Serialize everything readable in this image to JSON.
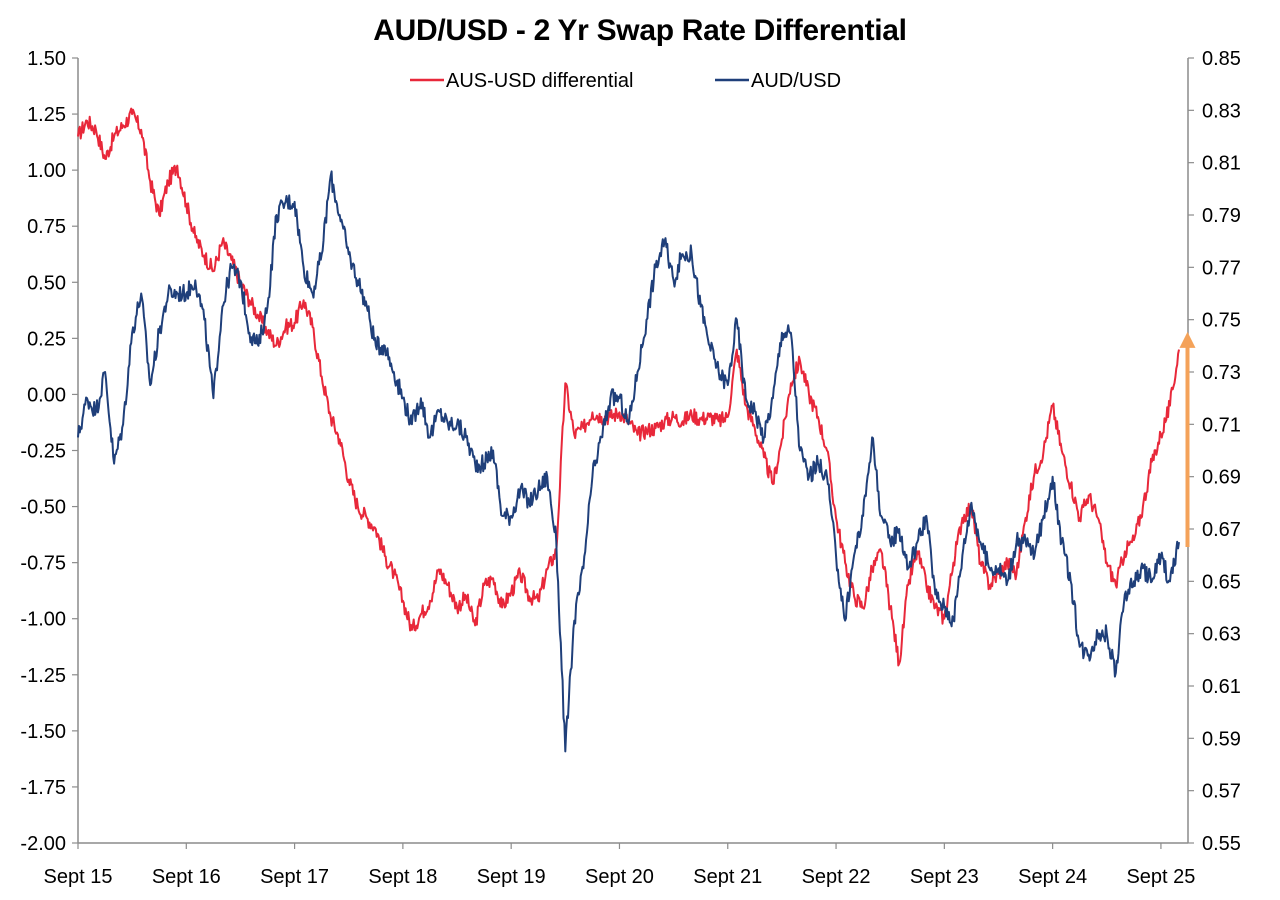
{
  "chart_data": {
    "type": "line",
    "title": "AUD/USD - 2 Yr Swap Rate Differential",
    "legend_position": "top-center",
    "grid": false,
    "x_tick_labels": [
      "Sept 15",
      "Sept 16",
      "Sept 17",
      "Sept 18",
      "Sept 19",
      "Sept 20",
      "Sept 21",
      "Sept 22",
      "Sept 23",
      "Sept 24",
      "Sept 25"
    ],
    "x_tick_dates": [
      "2015-09",
      "2016-09",
      "2017-09",
      "2018-09",
      "2019-09",
      "2020-09",
      "2021-09",
      "2022-09",
      "2023-09",
      "2024-09",
      "2025-09"
    ],
    "xlim": [
      "2015-09",
      "2025-12"
    ],
    "y_left": {
      "ylim": [
        -2.0,
        1.5
      ],
      "ticks": [
        "1.50",
        "1.25",
        "1.00",
        "0.75",
        "0.50",
        "0.25",
        "0.00",
        "-0.25",
        "-0.50",
        "-0.75",
        "-1.00",
        "-1.25",
        "-1.50",
        "-1.75",
        "-2.00"
      ]
    },
    "y_right": {
      "ylim": [
        0.55,
        0.85
      ],
      "ticks": [
        "0.85",
        "0.83",
        "0.81",
        "0.79",
        "0.77",
        "0.75",
        "0.73",
        "0.71",
        "0.69",
        "0.67",
        "0.65",
        "0.63",
        "0.61",
        "0.59",
        "0.57",
        "0.55"
      ]
    },
    "series": [
      {
        "name": "AUS-USD differential",
        "axis": "left",
        "color": "#e8283a",
        "points": [
          [
            "2015-09",
            1.15
          ],
          [
            "2015-10",
            1.22
          ],
          [
            "2015-11",
            1.18
          ],
          [
            "2015-12",
            1.05
          ],
          [
            "2016-01",
            1.15
          ],
          [
            "2016-02",
            1.2
          ],
          [
            "2016-03",
            1.25
          ],
          [
            "2016-04",
            1.18
          ],
          [
            "2016-05",
            0.95
          ],
          [
            "2016-06",
            0.8
          ],
          [
            "2016-07",
            0.95
          ],
          [
            "2016-08",
            1.02
          ],
          [
            "2016-09",
            0.85
          ],
          [
            "2016-10",
            0.7
          ],
          [
            "2016-11",
            0.62
          ],
          [
            "2016-12",
            0.55
          ],
          [
            "2017-01",
            0.68
          ],
          [
            "2017-02",
            0.6
          ],
          [
            "2017-03",
            0.5
          ],
          [
            "2017-04",
            0.42
          ],
          [
            "2017-05",
            0.35
          ],
          [
            "2017-06",
            0.28
          ],
          [
            "2017-07",
            0.22
          ],
          [
            "2017-08",
            0.3
          ],
          [
            "2017-09",
            0.32
          ],
          [
            "2017-10",
            0.42
          ],
          [
            "2017-11",
            0.3
          ],
          [
            "2017-12",
            0.08
          ],
          [
            "2018-01",
            -0.1
          ],
          [
            "2018-02",
            -0.2
          ],
          [
            "2018-03",
            -0.38
          ],
          [
            "2018-04",
            -0.5
          ],
          [
            "2018-05",
            -0.55
          ],
          [
            "2018-06",
            -0.6
          ],
          [
            "2018-07",
            -0.72
          ],
          [
            "2018-08",
            -0.8
          ],
          [
            "2018-09",
            -0.92
          ],
          [
            "2018-10",
            -1.05
          ],
          [
            "2018-11",
            -0.98
          ],
          [
            "2018-12",
            -0.92
          ],
          [
            "2019-01",
            -0.78
          ],
          [
            "2019-02",
            -0.85
          ],
          [
            "2019-03",
            -0.95
          ],
          [
            "2019-04",
            -0.9
          ],
          [
            "2019-05",
            -1.03
          ],
          [
            "2019-06",
            -0.85
          ],
          [
            "2019-07",
            -0.82
          ],
          [
            "2019-08",
            -0.95
          ],
          [
            "2019-09",
            -0.88
          ],
          [
            "2019-10",
            -0.8
          ],
          [
            "2019-11",
            -0.9
          ],
          [
            "2019-12",
            -0.92
          ],
          [
            "2020-01",
            -0.78
          ],
          [
            "2020-02",
            -0.7
          ],
          [
            "2020-03",
            0.05
          ],
          [
            "2020-04",
            -0.18
          ],
          [
            "2020-05",
            -0.15
          ],
          [
            "2020-06",
            -0.08
          ],
          [
            "2020-07",
            -0.1
          ],
          [
            "2020-08",
            -0.1
          ],
          [
            "2020-09",
            -0.08
          ],
          [
            "2020-10",
            -0.12
          ],
          [
            "2020-11",
            -0.18
          ],
          [
            "2020-12",
            -0.16
          ],
          [
            "2021-01",
            -0.15
          ],
          [
            "2021-02",
            -0.12
          ],
          [
            "2021-03",
            -0.1
          ],
          [
            "2021-04",
            -0.12
          ],
          [
            "2021-05",
            -0.09
          ],
          [
            "2021-06",
            -0.11
          ],
          [
            "2021-07",
            -0.1
          ],
          [
            "2021-08",
            -0.12
          ],
          [
            "2021-09",
            -0.1
          ],
          [
            "2021-10",
            0.2
          ],
          [
            "2021-11",
            -0.05
          ],
          [
            "2021-12",
            -0.15
          ],
          [
            "2022-01",
            -0.28
          ],
          [
            "2022-02",
            -0.4
          ],
          [
            "2022-03",
            -0.2
          ],
          [
            "2022-04",
            0.05
          ],
          [
            "2022-05",
            0.15
          ],
          [
            "2022-06",
            0.0
          ],
          [
            "2022-07",
            -0.1
          ],
          [
            "2022-08",
            -0.25
          ],
          [
            "2022-09",
            -0.55
          ],
          [
            "2022-10",
            -0.75
          ],
          [
            "2022-11",
            -0.9
          ],
          [
            "2022-12",
            -0.95
          ],
          [
            "2023-01",
            -0.78
          ],
          [
            "2023-02",
            -0.7
          ],
          [
            "2023-03",
            -0.95
          ],
          [
            "2023-04",
            -1.2
          ],
          [
            "2023-05",
            -0.85
          ],
          [
            "2023-06",
            -0.7
          ],
          [
            "2023-07",
            -0.85
          ],
          [
            "2023-08",
            -0.95
          ],
          [
            "2023-09",
            -1.0
          ],
          [
            "2023-10",
            -0.75
          ],
          [
            "2023-11",
            -0.55
          ],
          [
            "2023-12",
            -0.5
          ],
          [
            "2024-01",
            -0.75
          ],
          [
            "2024-02",
            -0.85
          ],
          [
            "2024-03",
            -0.8
          ],
          [
            "2024-04",
            -0.75
          ],
          [
            "2024-05",
            -0.8
          ],
          [
            "2024-06",
            -0.55
          ],
          [
            "2024-07",
            -0.35
          ],
          [
            "2024-08",
            -0.25
          ],
          [
            "2024-09",
            -0.05
          ],
          [
            "2024-10",
            -0.25
          ],
          [
            "2024-11",
            -0.4
          ],
          [
            "2024-12",
            -0.55
          ],
          [
            "2025-01",
            -0.45
          ],
          [
            "2025-02",
            -0.55
          ],
          [
            "2025-03",
            -0.75
          ],
          [
            "2025-04",
            -0.85
          ],
          [
            "2025-05",
            -0.7
          ],
          [
            "2025-06",
            -0.65
          ],
          [
            "2025-07",
            -0.5
          ],
          [
            "2025-08",
            -0.3
          ],
          [
            "2025-09",
            -0.18
          ],
          [
            "2025-10",
            -0.05
          ],
          [
            "2025-11",
            0.2
          ]
        ]
      },
      {
        "name": "AUD/USD",
        "axis": "right",
        "color": "#1f3f7a",
        "points": [
          [
            "2015-09",
            0.705
          ],
          [
            "2015-10",
            0.72
          ],
          [
            "2015-11",
            0.715
          ],
          [
            "2015-12",
            0.73
          ],
          [
            "2016-01",
            0.695
          ],
          [
            "2016-02",
            0.71
          ],
          [
            "2016-03",
            0.745
          ],
          [
            "2016-04",
            0.76
          ],
          [
            "2016-05",
            0.725
          ],
          [
            "2016-06",
            0.745
          ],
          [
            "2016-07",
            0.76
          ],
          [
            "2016-08",
            0.76
          ],
          [
            "2016-09",
            0.76
          ],
          [
            "2016-10",
            0.765
          ],
          [
            "2016-11",
            0.75
          ],
          [
            "2016-12",
            0.72
          ],
          [
            "2017-01",
            0.755
          ],
          [
            "2017-02",
            0.77
          ],
          [
            "2017-03",
            0.765
          ],
          [
            "2017-04",
            0.745
          ],
          [
            "2017-05",
            0.74
          ],
          [
            "2017-06",
            0.755
          ],
          [
            "2017-07",
            0.79
          ],
          [
            "2017-08",
            0.795
          ],
          [
            "2017-09",
            0.795
          ],
          [
            "2017-10",
            0.77
          ],
          [
            "2017-11",
            0.76
          ],
          [
            "2017-12",
            0.775
          ],
          [
            "2018-01",
            0.805
          ],
          [
            "2018-02",
            0.79
          ],
          [
            "2018-03",
            0.775
          ],
          [
            "2018-04",
            0.765
          ],
          [
            "2018-05",
            0.755
          ],
          [
            "2018-06",
            0.74
          ],
          [
            "2018-07",
            0.74
          ],
          [
            "2018-08",
            0.73
          ],
          [
            "2018-09",
            0.72
          ],
          [
            "2018-10",
            0.71
          ],
          [
            "2018-11",
            0.72
          ],
          [
            "2018-12",
            0.705
          ],
          [
            "2019-01",
            0.715
          ],
          [
            "2019-02",
            0.71
          ],
          [
            "2019-03",
            0.71
          ],
          [
            "2019-04",
            0.705
          ],
          [
            "2019-05",
            0.695
          ],
          [
            "2019-06",
            0.695
          ],
          [
            "2019-07",
            0.7
          ],
          [
            "2019-08",
            0.675
          ],
          [
            "2019-09",
            0.675
          ],
          [
            "2019-10",
            0.685
          ],
          [
            "2019-11",
            0.68
          ],
          [
            "2019-12",
            0.685
          ],
          [
            "2020-01",
            0.69
          ],
          [
            "2020-02",
            0.665
          ],
          [
            "2020-03",
            0.585
          ],
          [
            "2020-04",
            0.635
          ],
          [
            "2020-05",
            0.655
          ],
          [
            "2020-06",
            0.69
          ],
          [
            "2020-07",
            0.705
          ],
          [
            "2020-08",
            0.72
          ],
          [
            "2020-09",
            0.72
          ],
          [
            "2020-10",
            0.71
          ],
          [
            "2020-11",
            0.73
          ],
          [
            "2020-12",
            0.75
          ],
          [
            "2021-01",
            0.77
          ],
          [
            "2021-02",
            0.78
          ],
          [
            "2021-03",
            0.765
          ],
          [
            "2021-04",
            0.775
          ],
          [
            "2021-05",
            0.775
          ],
          [
            "2021-06",
            0.755
          ],
          [
            "2021-07",
            0.74
          ],
          [
            "2021-08",
            0.73
          ],
          [
            "2021-09",
            0.725
          ],
          [
            "2021-10",
            0.75
          ],
          [
            "2021-11",
            0.72
          ],
          [
            "2021-12",
            0.715
          ],
          [
            "2022-01",
            0.705
          ],
          [
            "2022-02",
            0.72
          ],
          [
            "2022-03",
            0.745
          ],
          [
            "2022-04",
            0.745
          ],
          [
            "2022-05",
            0.7
          ],
          [
            "2022-06",
            0.69
          ],
          [
            "2022-07",
            0.695
          ],
          [
            "2022-08",
            0.69
          ],
          [
            "2022-09",
            0.66
          ],
          [
            "2022-10",
            0.635
          ],
          [
            "2022-11",
            0.66
          ],
          [
            "2022-12",
            0.675
          ],
          [
            "2023-01",
            0.705
          ],
          [
            "2023-02",
            0.675
          ],
          [
            "2023-03",
            0.665
          ],
          [
            "2023-04",
            0.67
          ],
          [
            "2023-05",
            0.655
          ],
          [
            "2023-06",
            0.665
          ],
          [
            "2023-07",
            0.675
          ],
          [
            "2023-08",
            0.645
          ],
          [
            "2023-09",
            0.64
          ],
          [
            "2023-10",
            0.635
          ],
          [
            "2023-11",
            0.66
          ],
          [
            "2023-12",
            0.68
          ],
          [
            "2024-01",
            0.665
          ],
          [
            "2024-02",
            0.655
          ],
          [
            "2024-03",
            0.655
          ],
          [
            "2024-04",
            0.65
          ],
          [
            "2024-05",
            0.665
          ],
          [
            "2024-06",
            0.665
          ],
          [
            "2024-07",
            0.66
          ],
          [
            "2024-08",
            0.675
          ],
          [
            "2024-09",
            0.69
          ],
          [
            "2024-10",
            0.665
          ],
          [
            "2024-11",
            0.65
          ],
          [
            "2024-12",
            0.625
          ],
          [
            "2025-01",
            0.622
          ],
          [
            "2025-02",
            0.63
          ],
          [
            "2025-03",
            0.63
          ],
          [
            "2025-04",
            0.615
          ],
          [
            "2025-05",
            0.645
          ],
          [
            "2025-06",
            0.65
          ],
          [
            "2025-07",
            0.655
          ],
          [
            "2025-08",
            0.65
          ],
          [
            "2025-09",
            0.66
          ],
          [
            "2025-10",
            0.65
          ],
          [
            "2025-11",
            0.665
          ]
        ]
      }
    ],
    "annotations": [
      {
        "type": "arrow",
        "color": "#f4a259",
        "x": "2025-12",
        "y_from": -0.68,
        "y_to": 0.27,
        "axis": "left"
      }
    ]
  }
}
